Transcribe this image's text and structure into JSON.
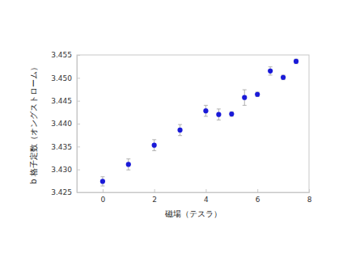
{
  "chart_data": {
    "type": "scatter",
    "x_label": "磁場（テスラ）",
    "y_label": "b 格子定数（オングストローム）",
    "x": [
      0,
      1,
      2,
      3,
      4,
      4.5,
      5,
      5.5,
      6,
      6.5,
      7,
      7.5
    ],
    "values": [
      3.4274,
      3.4311,
      3.4353,
      3.4386,
      3.4428,
      3.442,
      3.4421,
      3.4457,
      3.4464,
      3.4515,
      3.4501,
      3.4536
    ],
    "errors": [
      0.001,
      0.0012,
      0.0012,
      0.0012,
      0.0012,
      0.0012,
      0.0005,
      0.0017,
      0.0005,
      0.0009,
      0.0005,
      0.0005
    ],
    "color": "#1a1ad8",
    "marker": "circle",
    "xlim": [
      -1,
      8
    ],
    "xticks": [
      0,
      2,
      4,
      6,
      8
    ],
    "ylim": [
      3.425,
      3.455
    ],
    "yticks": [
      3.425,
      {
        "value": 3.43,
        "label": "3.430"
      },
      3.435,
      {
        "value": 3.44,
        "label": "3.440"
      },
      3.445,
      {
        "value": 3.45,
        "label": "3.450"
      },
      3.455
    ],
    "grid": false
  }
}
